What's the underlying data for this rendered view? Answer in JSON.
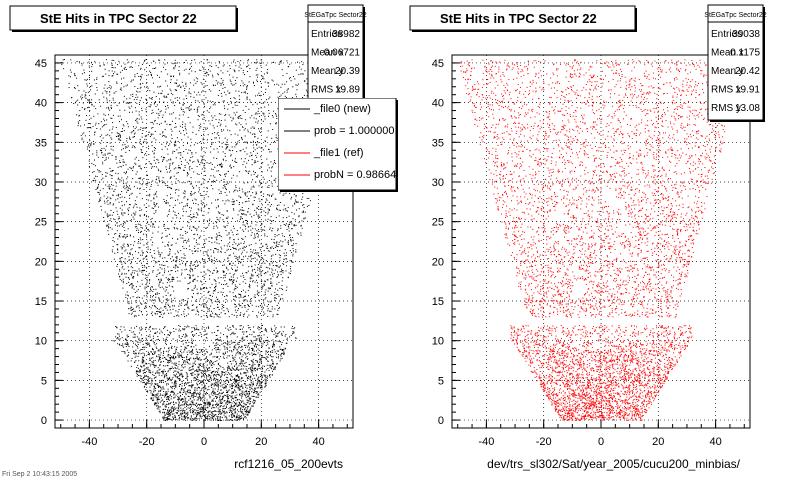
{
  "footer_stamp": "Fri Sep  2 10:43:15 2005",
  "chart_data": [
    {
      "type": "scatter",
      "title": "StE Hits in TPC Sector 22",
      "xlabel": "rcf1216_05_200evts",
      "ylabel": "",
      "xlim": [
        -52,
        52
      ],
      "ylim": [
        -1,
        46
      ],
      "x_ticks": [
        -40,
        -20,
        0,
        20,
        40
      ],
      "y_ticks": [
        0,
        5,
        10,
        15,
        20,
        25,
        30,
        35,
        40,
        45
      ],
      "grid": true,
      "marker_color": "#000000",
      "sample_points": 7000,
      "stats": {
        "name": "StEGaTpc Sector22",
        "rows": [
          {
            "label": "Entries",
            "value": "38982"
          },
          {
            "label": "Mean x",
            "value": "0.06721"
          },
          {
            "label": "Mean y",
            "value": "20.39"
          },
          {
            "label": "RMS x",
            "value": "19.89"
          }
        ]
      },
      "legend": {
        "placement": "top-right",
        "entries": [
          {
            "label": "_file0 (new)",
            "color": "#000000"
          },
          {
            "label": "prob = 1.000000",
            "color": "#000000"
          },
          {
            "label": "_file1 (ref)",
            "color": "#ff0000"
          },
          {
            "label": "probN = 0.98664",
            "color": "#ff0000"
          }
        ]
      }
    },
    {
      "type": "scatter",
      "title": "StE Hits in TPC Sector 22",
      "xlabel": "dev/trs_sl302/Sat/year_2005/cucu200_minbias/",
      "ylabel": "",
      "xlim": [
        -52,
        52
      ],
      "ylim": [
        -1,
        46
      ],
      "x_ticks": [
        -40,
        -20,
        0,
        20,
        40
      ],
      "y_ticks": [
        0,
        5,
        10,
        15,
        20,
        25,
        30,
        35,
        40,
        45
      ],
      "grid": true,
      "marker_color": "#ff0000",
      "sample_points": 7000,
      "stats": {
        "name": "StEGaTpc Sector22",
        "rows": [
          {
            "label": "Entries",
            "value": "39038"
          },
          {
            "label": "Mean x",
            "value": "0.1175"
          },
          {
            "label": "Mean y",
            "value": "20.42"
          },
          {
            "label": "RMS x",
            "value": "19.91"
          },
          {
            "label": "RMS y",
            "value": "13.08"
          }
        ]
      }
    }
  ]
}
